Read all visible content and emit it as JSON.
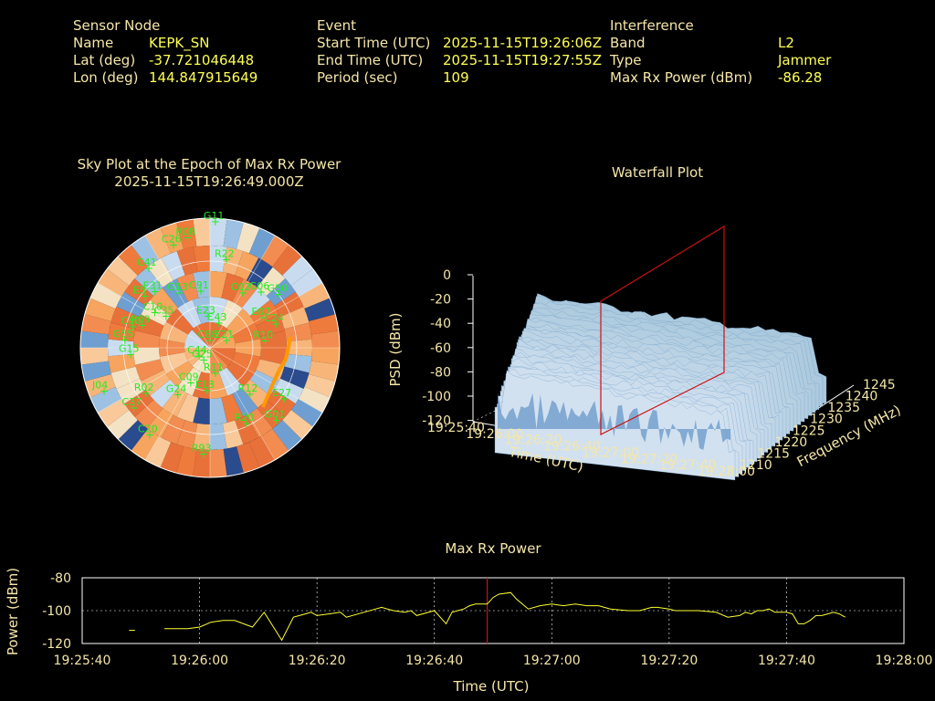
{
  "header": {
    "sensor": {
      "heading": "Sensor Node",
      "name_label": "Name",
      "name": "KEPK_SN",
      "lat_label": "Lat (deg)",
      "lat": "-37.721046448",
      "lon_label": "Lon (deg)",
      "lon": "144.847915649"
    },
    "event": {
      "heading": "Event",
      "start_label": "Start Time (UTC)",
      "start": "2025-11-15T19:26:06Z",
      "end_label": "End Time (UTC)",
      "end": "2025-11-15T19:27:55Z",
      "period_label": "Period (sec)",
      "period": "109"
    },
    "interference": {
      "heading": "Interference",
      "band_label": "Band",
      "band": "L2",
      "type_label": "Type",
      "type": "Jammer",
      "power_label": "Max Rx Power (dBm)",
      "power": "-86.28"
    }
  },
  "skyplot": {
    "title": "Sky Plot at the Epoch of Max Rx Power",
    "epoch": "2025-11-15T19:26:49.000Z",
    "satellites": [
      {
        "id": "G11",
        "az": 2,
        "el": 88
      },
      {
        "id": "C41",
        "az": -38,
        "el": 70
      },
      {
        "id": "C26",
        "az": -20,
        "el": 76
      },
      {
        "id": "R08",
        "az": -12,
        "el": 78
      },
      {
        "id": "R22",
        "az": 10,
        "el": 62
      },
      {
        "id": "E31",
        "az": -45,
        "el": 55
      },
      {
        "id": "E5",
        "az": -52,
        "el": 58
      },
      {
        "id": "C10",
        "az": -58,
        "el": 46
      },
      {
        "id": "G13",
        "az": -30,
        "el": 44
      },
      {
        "id": "C35",
        "az": -55,
        "el": 38
      },
      {
        "id": "C91",
        "az": -10,
        "el": 40
      },
      {
        "id": "G06",
        "az": 42,
        "el": 52
      },
      {
        "id": "G50",
        "az": 52,
        "el": 60
      },
      {
        "id": "C02",
        "az": 30,
        "el": 44
      },
      {
        "id": "E07",
        "az": 60,
        "el": 42
      },
      {
        "id": "C24",
        "az": 70,
        "el": 48
      },
      {
        "id": "R09",
        "az": -72,
        "el": 50
      },
      {
        "id": "C60",
        "az": -75,
        "el": 56
      },
      {
        "id": "E23",
        "az": -5,
        "el": 22
      },
      {
        "id": "C43",
        "az": 18,
        "el": 18
      },
      {
        "id": "G55",
        "az": -85,
        "el": 60
      },
      {
        "id": "R10",
        "az": 83,
        "el": 38
      },
      {
        "id": "C88",
        "az": -10,
        "el": 5
      },
      {
        "id": "E21",
        "az": 65,
        "el": 12
      },
      {
        "id": "G15",
        "az": -95,
        "el": 56
      },
      {
        "id": "R02",
        "az": -125,
        "el": 55
      },
      {
        "id": "G24",
        "az": -145,
        "el": 40
      },
      {
        "id": "C09",
        "az": -150,
        "el": 28
      },
      {
        "id": "E18",
        "az": -175,
        "el": 30
      },
      {
        "id": "R11",
        "az": 170,
        "el": 18
      },
      {
        "id": "R12",
        "az": 140,
        "el": 42
      },
      {
        "id": "E27",
        "az": 125,
        "el": 62
      },
      {
        "id": "R20",
        "az": 155,
        "el": 58
      },
      {
        "id": "G01",
        "az": 138,
        "el": 68
      },
      {
        "id": "J04",
        "az": -112,
        "el": 80
      },
      {
        "id": "C37",
        "az": -128,
        "el": 68
      },
      {
        "id": "C20",
        "az": -145,
        "el": 74
      },
      {
        "id": "R93",
        "az": -176,
        "el": 74
      },
      {
        "id": "G25",
        "az": -150,
        "el": 10
      },
      {
        "id": "C44",
        "az": -125,
        "el": 10
      }
    ]
  },
  "waterfall": {
    "title": "Waterfall Plot",
    "zlabel": "PSD (dBm)",
    "xlabel": "Time (UTC)",
    "ylabel": "Frequency (MHz)",
    "zticks": [
      "0",
      "-20",
      "-40",
      "-60",
      "-80",
      "-100",
      "-120"
    ],
    "xticks": [
      "19:25:40",
      "19:26:00",
      "19:26:20",
      "19:26:40",
      "19:27:00",
      "19:27:20",
      "19:27:40",
      "19:28:00"
    ],
    "yticks": [
      "1210",
      "1215",
      "1220",
      "1225",
      "1230",
      "1235",
      "1240",
      "1245"
    ]
  },
  "maxpower": {
    "title": "Max Rx Power",
    "ylabel": "Power (dBm)",
    "xlabel": "Time (UTC)",
    "yticks": [
      "-80",
      "-100",
      "-120"
    ],
    "xticks": [
      "19:25:40",
      "19:26:00",
      "19:26:20",
      "19:26:40",
      "19:27:00",
      "19:27:20",
      "19:27:40",
      "19:28:00"
    ],
    "marker_time_sec": 69
  },
  "chart_data": [
    {
      "type": "scatter",
      "title": "Sky Plot at the Epoch of Max Rx Power",
      "subtitle": "2025-11-15T19:26:49.000Z",
      "note": "polar sky plot; satellites listed in skyplot.satellites (azimuth deg, elevation-derived radius)"
    },
    {
      "type": "area",
      "title": "Waterfall Plot",
      "xlabel": "Time (UTC)",
      "ylabel": "Frequency (MHz)",
      "zlabel": "PSD (dBm)",
      "xlim": [
        "19:25:40",
        "19:28:00"
      ],
      "ylim": [
        1210,
        1245
      ],
      "zlim": [
        -120,
        0
      ],
      "series": [
        {
          "values_approx_surface_level_dBm": -30
        }
      ]
    },
    {
      "type": "line",
      "title": "Max Rx Power",
      "xlabel": "Time (UTC)",
      "ylabel": "Power (dBm)",
      "xlim": [
        "19:25:40",
        "19:28:00"
      ],
      "ylim": [
        -120,
        -80
      ],
      "grid": true,
      "x_sec_from_19_25_40": [
        8,
        9,
        14,
        15,
        18,
        20,
        22,
        24,
        26,
        29,
        31,
        34,
        36,
        37,
        38,
        39,
        40,
        42,
        44,
        45,
        48,
        50,
        51,
        53,
        55,
        56,
        57,
        60,
        62,
        63,
        64,
        65,
        66,
        67,
        68,
        69,
        70,
        71,
        73,
        74,
        75,
        76,
        78,
        80,
        82,
        84,
        86,
        88,
        90,
        93,
        95,
        97,
        98,
        100,
        101,
        103,
        104,
        105,
        108,
        110,
        112,
        113,
        114,
        115,
        116,
        117,
        118,
        120,
        121,
        122,
        123,
        124,
        125,
        126,
        127,
        128,
        129,
        130
      ],
      "y_dBm": [
        -112,
        -112,
        -111,
        -111,
        -111,
        -110,
        -107,
        -106,
        -106,
        -110,
        -101,
        -118,
        -104,
        -103,
        -102,
        -101,
        -103,
        -102,
        -101,
        -104,
        -101,
        -99,
        -98,
        -100,
        -101,
        -100,
        -103,
        -100,
        -108,
        -101,
        -100,
        -99,
        -97,
        -96,
        -96,
        -96,
        -92,
        -90,
        -89,
        -93,
        -96,
        -99,
        -97,
        -96,
        -97,
        -96,
        -97,
        -97,
        -99,
        -100,
        -100,
        -98,
        -98,
        -99,
        -100,
        -100,
        -100,
        -100,
        -101,
        -104,
        -103,
        -101,
        -102,
        -100,
        -100,
        -99,
        -101,
        -101,
        -102,
        -108,
        -108,
        -106,
        -103,
        -103,
        -102,
        -101,
        -102,
        -104
      ]
    }
  ]
}
